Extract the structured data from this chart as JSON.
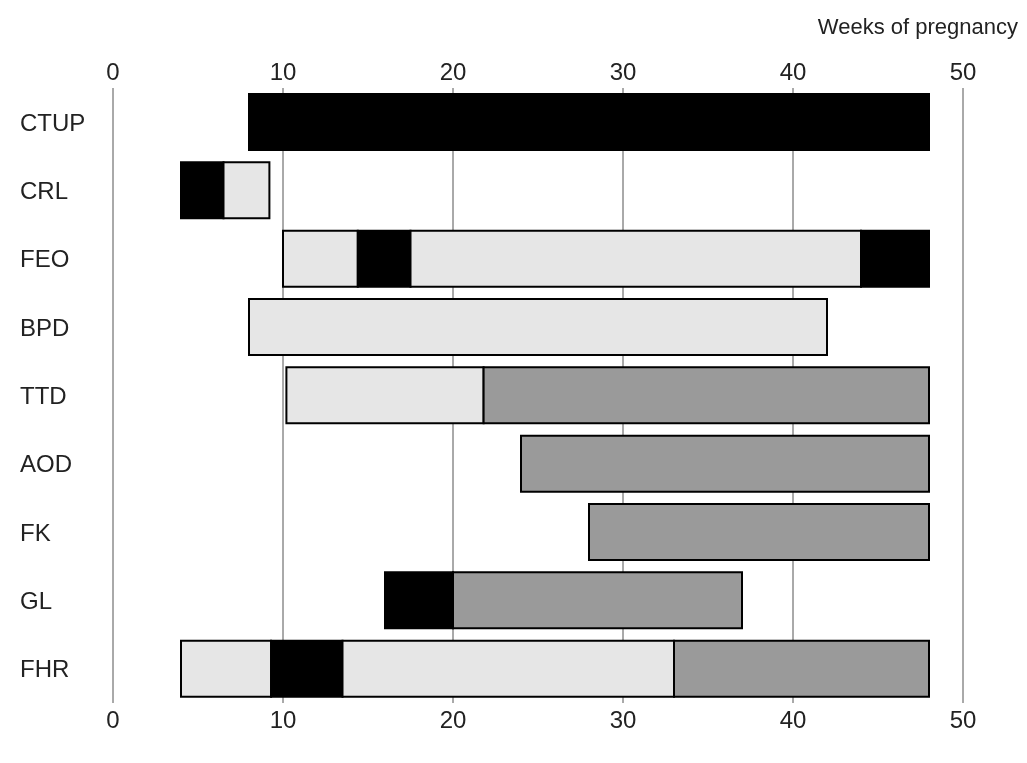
{
  "chart_data": {
    "type": "bar",
    "orientation": "horizontal",
    "categories": [
      "CTUP",
      "CRL",
      "FEO",
      "BPD",
      "TTD",
      "AOD",
      "FK",
      "GL",
      "FHR"
    ],
    "series": [
      {
        "colors": [
          "#000000",
          "#000000",
          "#e6e6e6",
          "#e6e6e6",
          "#e6e6e6",
          "#9a9a9a",
          "#9a9a9a",
          "#000000",
          "#e6e6e6"
        ],
        "base": [
          8,
          4,
          10,
          8,
          10.2,
          24,
          28,
          16,
          4
        ],
        "values": [
          40,
          2.5,
          4.4,
          34,
          11.6,
          24,
          20,
          4,
          5.3
        ]
      },
      {
        "colors": [
          "#000000",
          "#e6e6e6",
          "#000000",
          "#e6e6e6",
          "#9a9a9a",
          "#9a9a9a",
          "#9a9a9a",
          "#9a9a9a",
          "#000000"
        ],
        "base": [
          null,
          6.5,
          14.4,
          null,
          21.8,
          null,
          null,
          20,
          9.3
        ],
        "values": [
          null,
          2.7,
          3.1,
          null,
          26.2,
          null,
          null,
          17,
          4.2
        ]
      },
      {
        "colors": [
          "#000000",
          "#e6e6e6",
          "#e6e6e6",
          "#e6e6e6",
          "#9a9a9a",
          "#9a9a9a",
          "#9a9a9a",
          "#9a9a9a",
          "#e6e6e6"
        ],
        "base": [
          null,
          null,
          17.5,
          null,
          null,
          null,
          null,
          null,
          13.5
        ],
        "values": [
          null,
          null,
          26.5,
          null,
          null,
          null,
          null,
          null,
          19.5
        ]
      },
      {
        "colors": [
          "#000000",
          "#e6e6e6",
          "#000000",
          "#e6e6e6",
          "#9a9a9a",
          "#9a9a9a",
          "#9a9a9a",
          "#9a9a9a",
          "#9a9a9a"
        ],
        "base": [
          null,
          null,
          44,
          null,
          null,
          null,
          null,
          null,
          33
        ],
        "values": [
          null,
          null,
          4,
          null,
          null,
          null,
          null,
          null,
          15
        ]
      }
    ],
    "xlim": [
      0,
      50
    ],
    "xticks": [
      0,
      10,
      20,
      30,
      40,
      50
    ],
    "x2lim": [
      0,
      50
    ],
    "x2ticks": [
      0,
      10,
      20,
      30,
      40,
      50
    ],
    "x2label": "Weeks of pregnancy",
    "grid": "x"
  }
}
